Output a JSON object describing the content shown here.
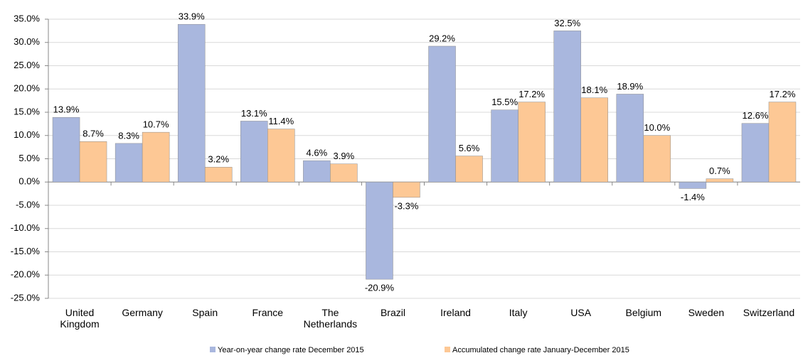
{
  "chart_data": {
    "type": "bar",
    "categories": [
      "United Kingdom",
      "Germany",
      "Spain",
      "France",
      "The Netherlands",
      "Brazil",
      "Ireland",
      "Italy",
      "USA",
      "Belgium",
      "Sweden",
      "Switzerland"
    ],
    "series": [
      {
        "name": "Year-on-year change rate December 2015",
        "color": "#a9b7de",
        "values": [
          13.9,
          8.3,
          33.9,
          13.1,
          4.6,
          -20.9,
          29.2,
          15.5,
          32.5,
          18.9,
          -1.4,
          12.6
        ],
        "value_labels": [
          "13.9%",
          "8.3%",
          "33.9%",
          "13.1%",
          "4.6%",
          "-20.9%",
          "29.2%",
          "15.5%",
          "32.5%",
          "18.9%",
          "-1.4%",
          "12.6%"
        ]
      },
      {
        "name": "Accumulated change rate January-December 2015",
        "color": "#fdc895",
        "values": [
          8.7,
          10.7,
          3.2,
          11.4,
          3.9,
          -3.3,
          5.6,
          17.2,
          18.1,
          10.0,
          0.7,
          17.2
        ],
        "value_labels": [
          "8.7%",
          "10.7%",
          "3.2%",
          "11.4%",
          "3.9%",
          "-3.3%",
          "5.6%",
          "17.2%",
          "18.1%",
          "10.0%",
          "0.7%",
          "17.2%"
        ]
      }
    ],
    "ylim": [
      -25,
      35
    ],
    "yticks": [
      {
        "value": -25,
        "label": "-25.0%"
      },
      {
        "value": -20,
        "label": "-20.0%"
      },
      {
        "value": -15,
        "label": "-15.0%"
      },
      {
        "value": -10,
        "label": "-10.0%"
      },
      {
        "value": -5,
        "label": "-5.0%"
      },
      {
        "value": 0,
        "label": "0.0%"
      },
      {
        "value": 5,
        "label": "5.0%"
      },
      {
        "value": 10,
        "label": "10.0%"
      },
      {
        "value": 15,
        "label": "15.0%"
      },
      {
        "value": 20,
        "label": "20.0%"
      },
      {
        "value": 25,
        "label": "25.0%"
      },
      {
        "value": 30,
        "label": "30.0%"
      },
      {
        "value": 35,
        "label": "35.0%"
      }
    ],
    "grid": true
  }
}
